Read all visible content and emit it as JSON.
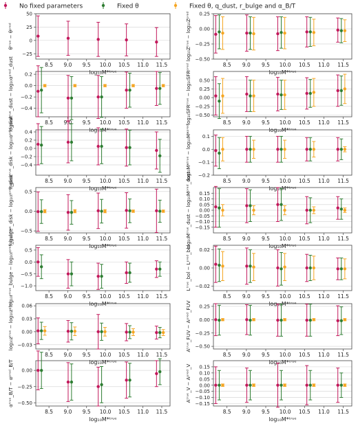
{
  "legend": {
    "placement": "top-center",
    "entries": [
      {
        "label": "No fixed parameters",
        "color": "#c2185b"
      },
      {
        "label": "Fixed θ",
        "color": "#2e7d32"
      },
      {
        "label": "Fixed θ, q_dust, r_bulge and α_B/T",
        "color": "#f5a623"
      }
    ]
  },
  "colors": {
    "red": "#c2185b",
    "green": "#2e7d32",
    "orange": "#f5a623",
    "grid": "#d9d9d9",
    "axis": "#444444"
  },
  "x_label": "log₁₀M*ᵗʳᵘᵉ",
  "x_ticks": [
    8.5,
    9.0,
    9.5,
    10.0,
    10.5,
    11.0,
    11.5
  ],
  "x_tick_labels": [
    "8.5",
    "9.0",
    "9.5",
    "10.0",
    "10.5",
    "11.0",
    "11.5"
  ],
  "chart_data": [
    {
      "type": "scatter",
      "ylabel": "θᵗʳᵘᵉ − θᵖʳᵉᵈ",
      "ylim": [
        -35,
        50
      ],
      "yticks": [
        -25,
        0,
        25,
        50
      ],
      "ytick_labels": [
        "−25",
        "0",
        "25",
        "50"
      ],
      "x": [
        8.3,
        9.1,
        9.9,
        10.65,
        11.45
      ],
      "series": [
        {
          "name": "No fixed parameters",
          "y": [
            8,
            4,
            2,
            1,
            -3
          ],
          "err": [
            38,
            32,
            32,
            30,
            27
          ]
        }
      ]
    },
    {
      "type": "scatter",
      "ylabel": "log₁₀Zᵗʳᵘᵉ − log₁₀Zᵖʳᵉᵈ",
      "ylim": [
        -0.5,
        0.25
      ],
      "yticks": [
        -0.5,
        -0.25,
        0.0,
        0.25
      ],
      "ytick_labels": [
        "−0.50",
        "−0.25",
        "0.00",
        "0.25"
      ],
      "x": [
        8.3,
        9.1,
        9.9,
        10.65,
        11.45
      ],
      "series": [
        {
          "name": "No fixed parameters",
          "y": [
            -0.09,
            -0.07,
            -0.08,
            -0.05,
            -0.02
          ],
          "err": [
            0.31,
            0.3,
            0.28,
            0.25,
            0.2
          ]
        },
        {
          "name": "Fixed θ",
          "y": [
            -0.05,
            -0.07,
            -0.06,
            -0.05,
            -0.03
          ],
          "err": [
            0.28,
            0.27,
            0.26,
            0.24,
            0.2
          ]
        },
        {
          "name": "Fixed θ, q_dust, r_bulge and α_B/T",
          "y": [
            -0.07,
            -0.08,
            -0.07,
            -0.06,
            -0.03
          ],
          "err": [
            0.27,
            0.27,
            0.26,
            0.22,
            0.18
          ]
        }
      ]
    },
    {
      "type": "scatter",
      "ylabel": "log₁₀αᵗʳᵘᵉ_dust − log₁₀αᵖʳᵉᵈ_dust",
      "ylim": [
        -0.55,
        0.25
      ],
      "yticks": [
        -0.4,
        -0.2,
        0.0,
        0.2
      ],
      "ytick_labels": [
        "−0.4",
        "−0.2",
        "0.0",
        "0.2"
      ],
      "x": [
        8.3,
        9.1,
        9.9,
        10.65,
        11.45
      ],
      "series": [
        {
          "name": "No fixed parameters",
          "y": [
            -0.1,
            -0.22,
            -0.2,
            -0.08,
            -0.05
          ],
          "err": [
            0.45,
            0.4,
            0.38,
            0.32,
            0.3
          ]
        },
        {
          "name": "Fixed θ",
          "y": [
            -0.08,
            -0.22,
            -0.2,
            -0.08,
            -0.05
          ],
          "err": [
            0.4,
            0.38,
            0.36,
            0.3,
            0.28
          ]
        },
        {
          "name": "Fixed θ, q_dust, r_bulge and α_B/T",
          "y": [
            0.0,
            0.0,
            0.0,
            0.0,
            0.0
          ],
          "err": [
            0.02,
            0.02,
            0.02,
            0.02,
            0.02
          ]
        }
      ]
    },
    {
      "type": "scatter",
      "ylabel": "log₁₀SFRᵗʳᵘᵉ − log₁₀SFRᵖʳᵉᵈ",
      "ylim": [
        -0.55,
        0.75
      ],
      "yticks": [
        -0.5,
        -0.25,
        0.0,
        0.25,
        0.5
      ],
      "ytick_labels": [
        "−0.50",
        "−0.25",
        "0.00",
        "0.25",
        "0.50"
      ],
      "x": [
        8.3,
        9.1,
        9.9,
        10.65,
        11.45
      ],
      "series": [
        {
          "name": "No fixed parameters",
          "y": [
            0.05,
            0.1,
            0.1,
            0.12,
            0.2
          ],
          "err": [
            0.55,
            0.5,
            0.48,
            0.45,
            0.45
          ]
        },
        {
          "name": "Fixed θ",
          "y": [
            -0.1,
            0.05,
            0.08,
            0.12,
            0.2
          ],
          "err": [
            0.5,
            0.45,
            0.42,
            0.4,
            0.42
          ]
        },
        {
          "name": "Fixed θ, q_dust, r_bulge and α_B/T",
          "y": [
            0.05,
            0.05,
            0.08,
            0.15,
            0.25
          ],
          "err": [
            0.5,
            0.45,
            0.42,
            0.4,
            0.42
          ]
        }
      ]
    },
    {
      "type": "scatter",
      "ylabel": "log₁₀αᵗʳᵘᵉ_disk − log₁₀αᵖʳᵉᵈ_disk",
      "ylim": [
        -0.65,
        0.45
      ],
      "yticks": [
        -0.4,
        -0.2,
        0.0,
        0.2,
        0.4
      ],
      "ytick_labels": [
        "−0.4",
        "−0.2",
        "0.0",
        "0.2",
        "0.4"
      ],
      "x": [
        8.3,
        9.1,
        9.9,
        10.65,
        11.45
      ],
      "series": [
        {
          "name": "No fixed parameters",
          "y": [
            0.1,
            0.15,
            0.05,
            0.02,
            -0.05
          ],
          "err": [
            0.5,
            0.5,
            0.45,
            0.45,
            0.45
          ]
        },
        {
          "name": "Fixed θ",
          "y": [
            0.08,
            0.15,
            0.05,
            0.02,
            -0.18
          ],
          "err": [
            0.45,
            0.45,
            0.42,
            0.42,
            0.4
          ]
        }
      ]
    },
    {
      "type": "scatter",
      "ylabel": "log₁₀M*ᵗʳᵘᵉ − log₁₀M*ᵖʳᵉᵈ",
      "ylim": [
        -0.2,
        0.15
      ],
      "yticks": [
        -0.2,
        -0.1,
        0.0,
        0.1
      ],
      "ytick_labels": [
        "−0.2",
        "−0.1",
        "0.0",
        "0.1"
      ],
      "x": [
        8.3,
        9.1,
        9.9,
        10.65,
        11.45
      ],
      "series": [
        {
          "name": "No fixed parameters",
          "y": [
            -0.01,
            0.0,
            0.0,
            0.0,
            0.0
          ],
          "err": [
            0.12,
            0.1,
            0.1,
            0.09,
            0.09
          ]
        },
        {
          "name": "Fixed θ",
          "y": [
            -0.03,
            0.0,
            0.0,
            0.0,
            0.0
          ],
          "err": [
            0.12,
            0.1,
            0.1,
            0.09,
            0.08
          ]
        },
        {
          "name": "Fixed θ, q_dust, r_bulge and α_B/T",
          "y": [
            0.0,
            0.0,
            0.0,
            0.0,
            0.0
          ],
          "err": [
            0.09,
            0.07,
            0.07,
            0.06,
            0.02
          ]
        }
      ]
    },
    {
      "type": "scatter",
      "ylabel": "log₁₀rᵗʳᵘᵉ_disk − log₁₀rᵖʳᵉᵈ_disk",
      "ylim": [
        -0.55,
        0.6
      ],
      "yticks": [
        -0.5,
        0.0,
        0.5
      ],
      "ytick_labels": [
        "−0.5",
        "0.0",
        "0.5"
      ],
      "x": [
        8.3,
        9.1,
        9.9,
        10.65,
        11.45
      ],
      "series": [
        {
          "name": "No fixed parameters",
          "y": [
            -0.01,
            -0.03,
            0.01,
            0.02,
            0.01
          ],
          "err": [
            0.5,
            0.45,
            0.45,
            0.45,
            0.55
          ]
        },
        {
          "name": "Fixed θ",
          "y": [
            -0.01,
            -0.03,
            0.0,
            0.01,
            0.0
          ],
          "err": [
            0.3,
            0.3,
            0.3,
            0.3,
            0.28
          ]
        },
        {
          "name": "Fixed θ, q_dust, r_bulge and α_B/T",
          "y": [
            0.0,
            0.0,
            0.0,
            0.0,
            0.0
          ],
          "err": [
            0.04,
            0.04,
            0.04,
            0.03,
            0.03
          ]
        }
      ]
    },
    {
      "type": "scatter",
      "ylabel": "log₁₀Mᵗʳᵘᵉ_dust − log₁₀Mᵖʳᵉᵈ_dust",
      "ylim": [
        -0.2,
        0.2
      ],
      "yticks": [
        -0.15,
        -0.1,
        -0.05,
        0.0,
        0.05,
        0.1,
        0.15
      ],
      "ytick_labels": [
        "−0.15",
        "−0.10",
        "−0.05",
        "0.00",
        "0.05",
        "0.10",
        "0.15"
      ],
      "x": [
        8.3,
        9.1,
        9.9,
        10.65,
        11.45
      ],
      "series": [
        {
          "name": "No fixed parameters",
          "y": [
            0.03,
            0.04,
            0.05,
            0.0,
            0.02
          ],
          "err": [
            0.18,
            0.15,
            0.15,
            0.12,
            0.1
          ]
        },
        {
          "name": "Fixed θ",
          "y": [
            0.02,
            0.04,
            0.05,
            0.0,
            0.01
          ],
          "err": [
            0.17,
            0.14,
            0.14,
            0.11,
            0.09
          ]
        },
        {
          "name": "Fixed θ, q_dust, r_bulge and α_B/T",
          "y": [
            0.0,
            0.0,
            0.0,
            0.0,
            0.0
          ],
          "err": [
            0.05,
            0.04,
            0.04,
            0.03,
            0.02
          ]
        }
      ]
    },
    {
      "type": "scatter",
      "ylabel": "log₁₀rᵗʳᵘᵉ_bulge − log₁₀rᵖʳᵉᵈ_bulge",
      "ylim": [
        -1.2,
        0.7
      ],
      "yticks": [
        -1.0,
        -0.5,
        0.0,
        0.5
      ],
      "ytick_labels": [
        "−1.0",
        "−0.5",
        "0.0",
        "0.5"
      ],
      "x": [
        8.3,
        9.1,
        9.9,
        10.65,
        11.45
      ],
      "series": [
        {
          "name": "No fixed parameters",
          "y": [
            0.0,
            -0.5,
            -0.6,
            -0.45,
            -0.3
          ],
          "err": [
            0.6,
            0.6,
            0.55,
            0.45,
            0.35
          ]
        },
        {
          "name": "Fixed θ",
          "y": [
            -0.2,
            -0.5,
            -0.6,
            -0.45,
            -0.3
          ],
          "err": [
            0.5,
            0.5,
            0.5,
            0.4,
            0.3
          ]
        }
      ]
    },
    {
      "type": "scatter",
      "ylabel": "Lᵗʳᵘᵉ_bol − Lᵖʳᵉᵈ_bol",
      "ylim": [
        -0.025,
        0.025
      ],
      "yticks": [
        -0.02,
        0.0,
        0.02
      ],
      "ytick_labels": [
        "−0.02",
        "0.00",
        "0.02"
      ],
      "x": [
        8.3,
        9.1,
        9.9,
        10.65,
        11.45
      ],
      "series": [
        {
          "name": "No fixed parameters",
          "y": [
            0.004,
            0.002,
            0.0,
            0.0,
            -0.001
          ],
          "err": [
            0.02,
            0.02,
            0.02,
            0.015,
            0.012
          ]
        },
        {
          "name": "Fixed θ",
          "y": [
            0.003,
            0.002,
            -0.001,
            0.0,
            -0.001
          ],
          "err": [
            0.018,
            0.018,
            0.018,
            0.014,
            0.012
          ]
        },
        {
          "name": "Fixed θ, q_dust, r_bulge and α_B/T",
          "y": [
            0.002,
            0.001,
            0.001,
            0.0,
            -0.001
          ],
          "err": [
            0.016,
            0.015,
            0.015,
            0.013,
            0.011
          ]
        }
      ]
    },
    {
      "type": "scatter",
      "ylabel": "log₁₀zᵗʳᵘᵉ − log₁₀zᵖʳᵉᵈ",
      "ylim": [
        -0.04,
        0.065
      ],
      "yticks": [
        -0.03,
        0.0,
        0.03,
        0.06
      ],
      "ytick_labels": [
        "−0.03",
        "0.00",
        "0.03",
        "0.06"
      ],
      "x": [
        8.3,
        9.1,
        9.9,
        10.65,
        11.45
      ],
      "series": [
        {
          "name": "No fixed parameters",
          "y": [
            0.002,
            0.001,
            0.0,
            -0.001,
            -0.002
          ],
          "err": [
            0.03,
            0.025,
            0.04,
            0.02,
            0.015
          ]
        },
        {
          "name": "Fixed θ",
          "y": [
            0.002,
            0.001,
            0.0,
            -0.001,
            -0.002
          ],
          "err": [
            0.02,
            0.02,
            0.02,
            0.015,
            0.012
          ]
        },
        {
          "name": "Fixed θ, q_dust, r_bulge and α_B/T",
          "y": [
            0.002,
            0.001,
            0.0,
            -0.001,
            -0.002
          ],
          "err": [
            0.01,
            0.01,
            0.01,
            0.008,
            0.007
          ]
        }
      ]
    },
    {
      "type": "scatter",
      "ylabel": "Aᵗʳᵘᵉ_FUV − Aᵖʳᵉᵈ_FUV",
      "ylim": [
        -0.55,
        0.3
      ],
      "yticks": [
        -0.5,
        -0.25,
        0.0,
        0.25
      ],
      "ytick_labels": [
        "−0.50",
        "−0.25",
        "0.00",
        "0.25"
      ],
      "x": [
        8.3,
        9.1,
        9.9,
        10.65,
        11.45
      ],
      "series": [
        {
          "name": "No fixed parameters",
          "y": [
            0.0,
            0.0,
            -0.01,
            -0.01,
            -0.02
          ],
          "err": [
            0.3,
            0.28,
            0.3,
            0.3,
            0.28
          ]
        },
        {
          "name": "Fixed θ",
          "y": [
            -0.01,
            -0.01,
            -0.01,
            -0.01,
            -0.02
          ],
          "err": [
            0.28,
            0.28,
            0.3,
            0.3,
            0.26
          ]
        },
        {
          "name": "Fixed θ, q_dust, r_bulge and α_B/T",
          "y": [
            0.0,
            0.0,
            0.0,
            0.0,
            0.0
          ],
          "err": [
            0.02,
            0.02,
            0.02,
            0.02,
            0.02
          ]
        }
      ]
    },
    {
      "type": "scatter",
      "ylabel": "αᵗʳᵘᵉ_B/T − αᵖʳᵉᵈ_B/T",
      "ylim": [
        -0.55,
        0.15
      ],
      "yticks": [
        -0.5,
        -0.25,
        0.0
      ],
      "ytick_labels": [
        "−0.50",
        "−0.25",
        "0.00"
      ],
      "x": [
        8.3,
        9.1,
        9.9,
        10.65,
        11.45
      ],
      "series": [
        {
          "name": "No fixed parameters",
          "y": [
            0.0,
            -0.18,
            -0.25,
            -0.15,
            -0.05
          ],
          "err": [
            0.3,
            0.3,
            0.3,
            0.28,
            0.2
          ]
        },
        {
          "name": "Fixed θ",
          "y": [
            0.0,
            -0.18,
            -0.22,
            -0.15,
            -0.02
          ],
          "err": [
            0.28,
            0.28,
            0.28,
            0.26,
            0.2
          ]
        }
      ]
    },
    {
      "type": "scatter",
      "ylabel": "Aᵗʳᵘᵉ_V − Aᵖʳᵉᵈ_V",
      "ylim": [
        -0.17,
        0.2
      ],
      "yticks": [
        -0.15,
        -0.1,
        -0.05,
        0.0,
        0.05,
        0.1,
        0.15
      ],
      "ytick_labels": [
        "−0.15",
        "−0.10",
        "−0.05",
        "0.00",
        "0.05",
        "0.10",
        "0.15"
      ],
      "x": [
        8.3,
        9.1,
        9.9,
        10.65,
        11.45
      ],
      "series": [
        {
          "name": "No fixed parameters",
          "y": [
            0.0,
            0.0,
            0.0,
            0.0,
            0.0
          ],
          "err": [
            0.15,
            0.14,
            0.18,
            0.16,
            0.14
          ]
        },
        {
          "name": "Fixed θ",
          "y": [
            0.0,
            0.0,
            0.0,
            0.0,
            0.0
          ],
          "err": [
            0.12,
            0.12,
            0.12,
            0.12,
            0.1
          ]
        },
        {
          "name": "Fixed θ, q_dust, r_bulge and α_B/T",
          "y": [
            0.0,
            0.0,
            0.0,
            0.0,
            0.0
          ],
          "err": [
            0.01,
            0.01,
            0.01,
            0.01,
            0.01
          ]
        }
      ]
    }
  ]
}
